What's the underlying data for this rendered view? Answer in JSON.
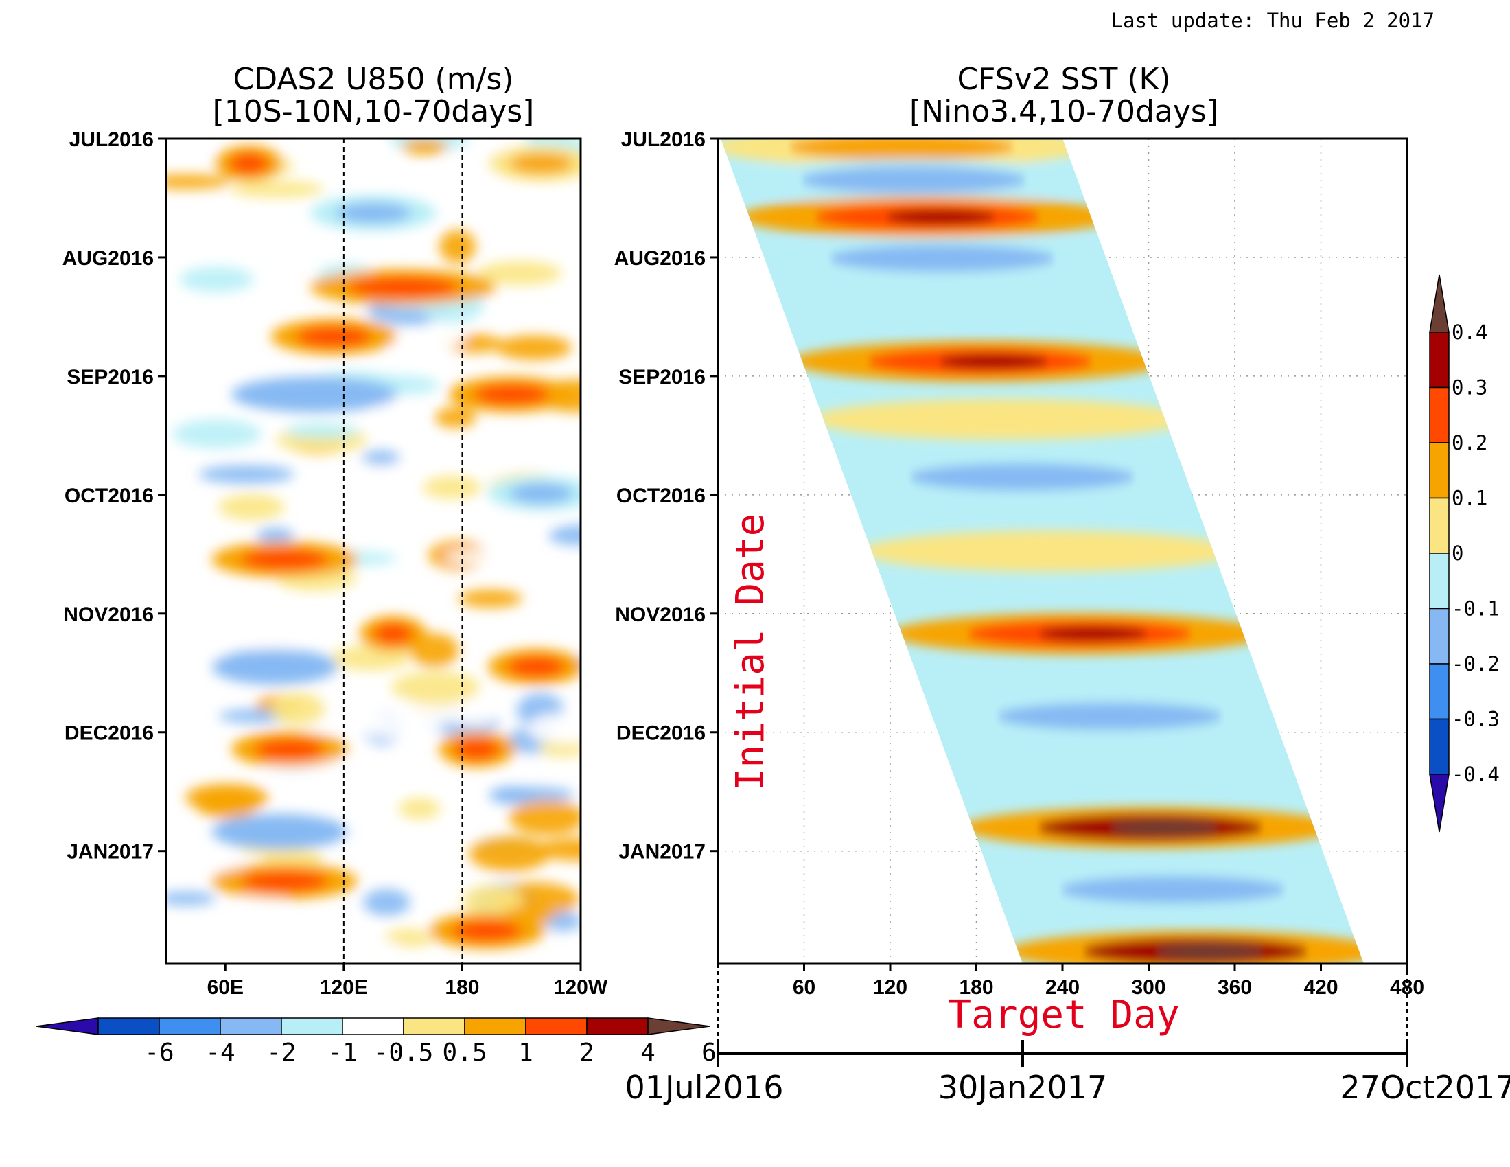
{
  "last_update": "Last update: Thu Feb 2 2017",
  "chart_data": [
    {
      "type": "heatmap",
      "title_line1": "CDAS2 U850 (m/s)",
      "title_line2": "[10S-10N,10-70days]",
      "x_ticks": [
        "60E",
        "120E",
        "180",
        "120W"
      ],
      "x_tick_values": [
        60,
        120,
        180,
        240
      ],
      "xlim": [
        30,
        240
      ],
      "y_ticks": [
        "JUL2016",
        "AUG2016",
        "SEP2016",
        "OCT2016",
        "NOV2016",
        "DEC2016",
        "JAN2017"
      ],
      "reference_lines": [
        120,
        180
      ],
      "colorbar": {
        "labels": [
          "-6",
          "-4",
          "-2",
          "-1",
          "-0.5",
          "0.5",
          "1",
          "2",
          "4",
          "6"
        ],
        "colors": [
          "#2a0aa8",
          "#0b4fc4",
          "#3f8ff0",
          "#86b9f3",
          "#b8eff7",
          "#ffffff",
          "#fbe582",
          "#f7a400",
          "#ff4900",
          "#a30000",
          "#6b3f33"
        ]
      },
      "values_description_anomaly": {
        "bands": [
          {
            "row": 0.03,
            "x": [
              62,
              82
            ],
            "v": 2.5
          },
          {
            "row": 0.03,
            "x": [
              200,
              240
            ],
            "v": 1.5
          },
          {
            "row": 0.09,
            "x": [
              110,
              160
            ],
            "v": -1.5
          },
          {
            "row": 0.18,
            "x": [
              110,
              190
            ],
            "v": 2
          },
          {
            "row": 0.24,
            "x": [
              90,
              140
            ],
            "v": 2.5
          },
          {
            "row": 0.31,
            "x": [
              70,
              140
            ],
            "v": -2
          },
          {
            "row": 0.31,
            "x": [
              180,
              230
            ],
            "v": 2
          },
          {
            "row": 0.43,
            "x": [
              200,
              240
            ],
            "v": -1.5
          },
          {
            "row": 0.51,
            "x": [
              60,
              120
            ],
            "v": 2
          },
          {
            "row": 0.6,
            "x": [
              135,
              155
            ],
            "v": 3
          },
          {
            "row": 0.64,
            "x": [
              60,
              110
            ],
            "v": -2
          },
          {
            "row": 0.64,
            "x": [
              200,
              235
            ],
            "v": 2.5
          },
          {
            "row": 0.74,
            "x": [
              70,
              115
            ],
            "v": 3
          },
          {
            "row": 0.74,
            "x": [
              175,
              200
            ],
            "v": 2.5
          },
          {
            "row": 0.84,
            "x": [
              60,
              115
            ],
            "v": -2
          },
          {
            "row": 0.9,
            "x": [
              60,
              120
            ],
            "v": 2
          },
          {
            "row": 0.96,
            "x": [
              170,
              215
            ],
            "v": 3
          }
        ]
      }
    },
    {
      "type": "heatmap",
      "title_line1": "CFSv2 SST (K)",
      "title_line2": "[Nino3.4,10-70days]",
      "x_ticks": [
        "60",
        "120",
        "180",
        "240",
        "300",
        "360",
        "420",
        "480"
      ],
      "x_tick_values": [
        60,
        120,
        180,
        240,
        300,
        360,
        420,
        480
      ],
      "xlim": [
        0,
        480
      ],
      "y_ticks": [
        "JUL2016",
        "AUG2016",
        "SEP2016",
        "OCT2016",
        "NOV2016",
        "DEC2016",
        "JAN2017"
      ],
      "ylabel": "Initial Date",
      "xlabel": "Target Day",
      "date_axis": [
        "01Jul2016",
        "30Jan2017",
        "27Oct2017"
      ],
      "colorbar": {
        "labels": [
          "0.4",
          "0.3",
          "0.2",
          "0.1",
          "0",
          "-0.1",
          "-0.2",
          "-0.3",
          "-0.4"
        ],
        "colors": [
          "#6b3f33",
          "#a30000",
          "#ff4900",
          "#f7a400",
          "#fbe582",
          "#b8eff7",
          "#86b9f3",
          "#3f8ff0",
          "#0b4fc4",
          "#2a0aa8"
        ]
      },
      "bands": [
        {
          "row": 0.01,
          "v": 0.15
        },
        {
          "row": 0.05,
          "v": -0.15
        },
        {
          "row": 0.095,
          "v": 0.25
        },
        {
          "row": 0.145,
          "v": -0.2
        },
        {
          "row": 0.2,
          "v": -0.1
        },
        {
          "row": 0.27,
          "v": 0.25
        },
        {
          "row": 0.34,
          "v": 0.05
        },
        {
          "row": 0.41,
          "v": -0.2
        },
        {
          "row": 0.5,
          "v": 0.05
        },
        {
          "row": 0.6,
          "v": 0.25
        },
        {
          "row": 0.7,
          "v": -0.2
        },
        {
          "row": 0.835,
          "v": 0.3
        },
        {
          "row": 0.91,
          "v": -0.15
        },
        {
          "row": 0.985,
          "v": 0.3
        }
      ]
    }
  ]
}
